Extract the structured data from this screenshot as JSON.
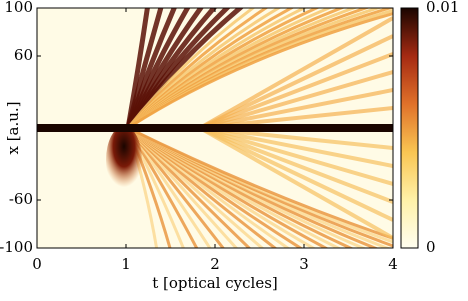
{
  "chart_data": {
    "type": "heatmap",
    "xlabel": "t [optical cycles]",
    "ylabel": "x [a.u.]",
    "xlim": [
      0,
      4
    ],
    "xticks": [
      0,
      1,
      2,
      3,
      4
    ],
    "ylim": [
      -100,
      100
    ],
    "yticks": [
      -100,
      -60,
      60,
      100
    ],
    "colorbar": {
      "lim": [
        0,
        0.01
      ],
      "ticks": [
        0,
        0.01
      ],
      "colormap": [
        "#fffef0",
        "#fff1a8",
        "#f9c552",
        "#e0712a",
        "#a52a12",
        "#1a0500"
      ]
    }
  }
}
